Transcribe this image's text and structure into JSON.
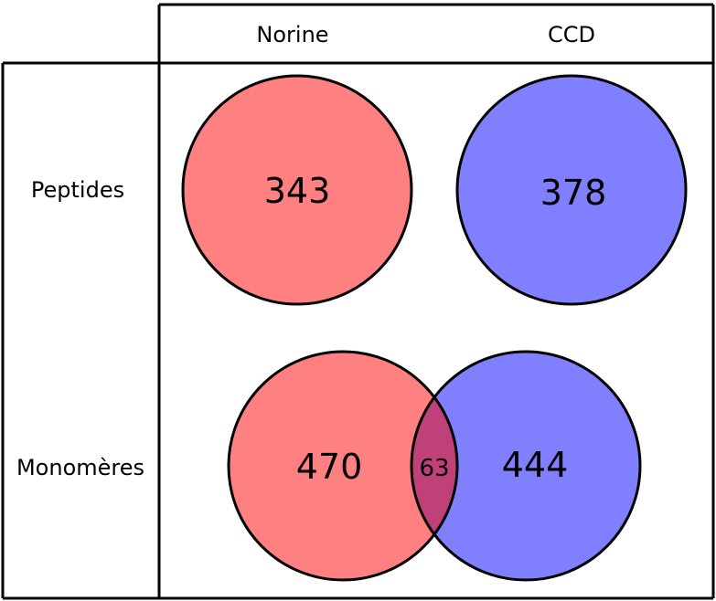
{
  "columns": {
    "left": "Norine",
    "right": "CCD"
  },
  "rows": {
    "top": "Peptides",
    "bottom": "Monomères"
  },
  "peptides": {
    "norine_count": "343",
    "ccd_count": "378"
  },
  "monomers": {
    "norine_only_count": "470",
    "overlap_count": "63",
    "ccd_only_count": "444"
  },
  "colors": {
    "norine": "#ff8080",
    "ccd": "#8080ff",
    "overlap": "#c0407a",
    "outline": "#000000",
    "background": "#ffffff"
  }
}
